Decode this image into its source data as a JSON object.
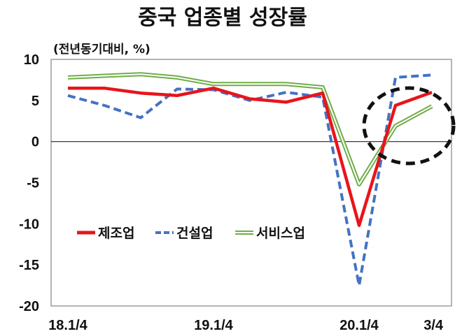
{
  "chart_data": {
    "type": "line",
    "title": "중국 업종별 성장률",
    "unit_label": "(전년동기대비, %)",
    "ylim": [
      -20,
      10
    ],
    "yticks": [
      10,
      5,
      0,
      -5,
      -10,
      -15,
      -20
    ],
    "ytick_labels": [
      "10",
      "5",
      "0",
      "-5",
      "-10",
      "-15",
      "-20"
    ],
    "x": [
      "18.1/4",
      "18.2/4",
      "18.3/4",
      "18.4/4",
      "19.1/4",
      "19.2/4",
      "19.3/4",
      "19.4/4",
      "20.1/4",
      "20.2/4",
      "20.3/4"
    ],
    "xtick_labels": [
      {
        "label": "18.1/4",
        "index": 0
      },
      {
        "label": "19.1/4",
        "index": 4
      },
      {
        "label": "20.1/4",
        "index": 8
      },
      {
        "label": "3/4",
        "index": 10
      }
    ],
    "series": [
      {
        "name": "제조업",
        "color": "#e8141b",
        "style": "solid",
        "values": [
          6.5,
          6.5,
          5.9,
          5.6,
          6.5,
          5.2,
          4.8,
          5.9,
          -10.2,
          4.4,
          6.0
        ]
      },
      {
        "name": "건설업",
        "color": "#4472c4",
        "style": "dashed",
        "values": [
          5.6,
          4.4,
          2.9,
          6.4,
          6.3,
          5.0,
          6.0,
          5.4,
          -17.5,
          7.8,
          8.1
        ]
      },
      {
        "name": "서비스업",
        "color": "#70ad47",
        "style": "double",
        "values": [
          7.8,
          8.0,
          8.2,
          7.8,
          7.0,
          7.0,
          7.0,
          6.6,
          -5.2,
          1.9,
          4.3
        ]
      }
    ],
    "grid": false,
    "legend_position": "center-left",
    "annotation": "dashed black ellipse highlighting recovery at 20.2/4–20.3/4"
  }
}
